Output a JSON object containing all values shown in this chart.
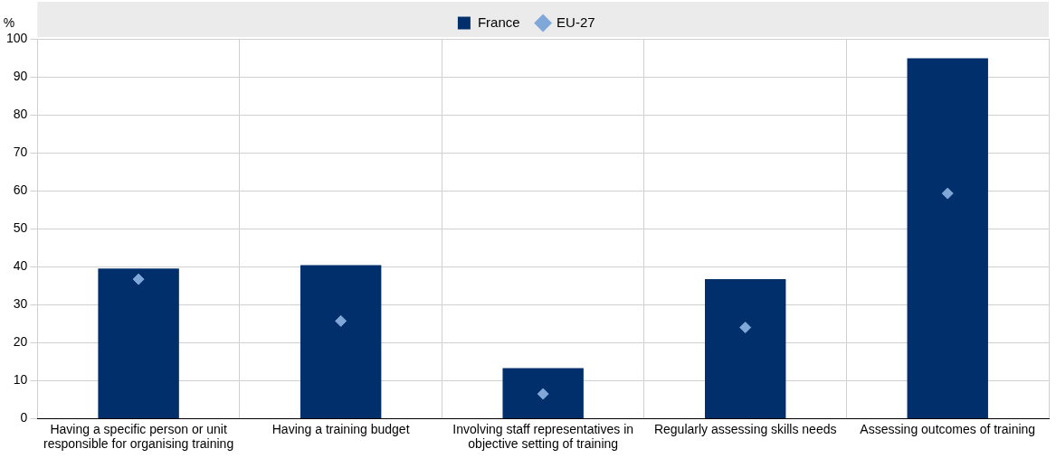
{
  "chart_data": {
    "type": "bar",
    "ylabel": "%",
    "categories": [
      "Having a specific person or unit responsible for organising training",
      "Having a training budget",
      "Involving staff representatives in objective setting of training",
      "Regularly assessing skills needs",
      "Assessing outcomes of training"
    ],
    "series": [
      {
        "name": "France",
        "color": "#002f6c",
        "values": [
          39.5,
          40.4,
          13.3,
          36.7,
          94.9
        ]
      },
      {
        "name": "EU-27",
        "type": "scatter",
        "marker": "diamond",
        "color": "#7fa8d9",
        "values": [
          36.7,
          25.7,
          6.5,
          24.0,
          59.3
        ]
      }
    ],
    "ylim": [
      0,
      100
    ],
    "yticks": [
      0,
      10,
      20,
      30,
      40,
      50,
      60,
      70,
      80,
      90,
      100
    ],
    "grid": true,
    "legend": "top"
  }
}
